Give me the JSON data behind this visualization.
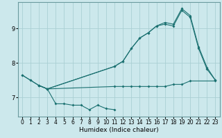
{
  "xlabel": "Humidex (Indice chaleur)",
  "bg_color": "#cce8ec",
  "grid_color": "#aacfd4",
  "line_color": "#1a7070",
  "xlim": [
    -0.5,
    23.5
  ],
  "ylim": [
    6.45,
    9.75
  ],
  "yticks": [
    7,
    8,
    9
  ],
  "xticks": [
    0,
    1,
    2,
    3,
    4,
    5,
    6,
    7,
    8,
    9,
    10,
    11,
    12,
    13,
    14,
    15,
    16,
    17,
    18,
    19,
    20,
    21,
    22,
    23
  ],
  "xlabel_fontsize": 6.5,
  "tick_fontsize": 5.5,
  "series1_x": [
    0,
    1,
    2,
    3,
    4,
    5,
    6,
    7,
    8,
    9,
    10,
    11
  ],
  "series1_y": [
    7.65,
    7.5,
    7.35,
    7.25,
    6.82,
    6.82,
    6.78,
    6.78,
    6.65,
    6.78,
    6.68,
    6.65
  ],
  "series2_x": [
    0,
    1,
    2,
    3,
    11,
    12,
    13,
    14,
    15,
    16,
    17,
    18,
    19,
    20,
    23
  ],
  "series2_y": [
    7.65,
    7.5,
    7.35,
    7.25,
    7.32,
    7.32,
    7.32,
    7.32,
    7.32,
    7.32,
    7.32,
    7.38,
    7.38,
    7.48,
    7.48
  ],
  "series3_x": [
    2,
    3,
    11,
    12,
    13,
    14,
    15,
    16,
    17,
    18,
    19,
    20,
    21,
    22,
    23
  ],
  "series3_y": [
    7.35,
    7.25,
    7.9,
    8.05,
    8.42,
    8.72,
    8.87,
    9.07,
    9.12,
    9.07,
    9.52,
    9.32,
    8.42,
    7.82,
    7.5
  ],
  "series4_x": [
    2,
    3,
    11,
    12,
    13,
    14,
    15,
    16,
    17,
    18,
    19,
    20,
    21,
    22,
    23
  ],
  "series4_y": [
    7.35,
    7.25,
    7.9,
    8.05,
    8.42,
    8.72,
    8.87,
    9.07,
    9.17,
    9.12,
    9.57,
    9.37,
    8.47,
    7.87,
    7.5
  ]
}
